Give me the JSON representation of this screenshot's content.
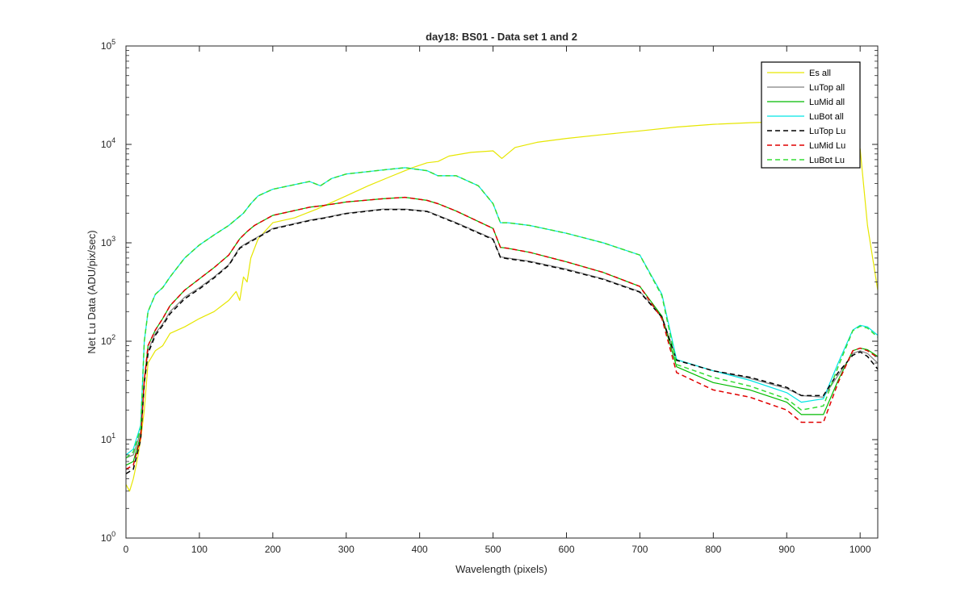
{
  "chart_data": {
    "type": "line",
    "title": "day18: BS01 - Data set 1 and 2",
    "xlabel": "Wavelength (pixels)",
    "ylabel": "Net Lu Data (ADU/pix/sec)",
    "xlim": [
      0,
      1024
    ],
    "ylim": [
      1,
      100000
    ],
    "yscale": "log",
    "grid": false,
    "legend_position": "top-right",
    "x_ticks": [
      0,
      100,
      200,
      300,
      400,
      500,
      600,
      700,
      800,
      900,
      1000
    ],
    "y_ticks": [
      1,
      10,
      100,
      1000,
      10000,
      100000
    ],
    "y_tick_labels": [
      {
        "base": "10",
        "exp": "0"
      },
      {
        "base": "10",
        "exp": "1"
      },
      {
        "base": "10",
        "exp": "2"
      },
      {
        "base": "10",
        "exp": "3"
      },
      {
        "base": "10",
        "exp": "4"
      },
      {
        "base": "10",
        "exp": "5"
      }
    ],
    "series": [
      {
        "name": "Es  all",
        "color": "#e6e600",
        "style": "solid",
        "x": [
          0,
          5,
          10,
          15,
          20,
          25,
          30,
          40,
          50,
          60,
          80,
          100,
          120,
          140,
          150,
          155,
          160,
          165,
          170,
          180,
          200,
          230,
          260,
          300,
          330,
          360,
          390,
          410,
          425,
          440,
          470,
          500,
          512,
          530,
          560,
          600,
          650,
          700,
          750,
          800,
          850,
          900,
          940,
          980,
          1000,
          1010,
          1024
        ],
        "y": [
          3.5,
          3.0,
          4.0,
          6.0,
          10,
          20,
          60,
          80,
          90,
          120,
          140,
          170,
          200,
          260,
          320,
          260,
          450,
          400,
          700,
          1100,
          1600,
          1800,
          2200,
          3000,
          3800,
          4700,
          5800,
          6500,
          6700,
          7600,
          8300,
          8600,
          7200,
          9300,
          10500,
          11500,
          12600,
          13700,
          15000,
          16000,
          16600,
          17000,
          17500,
          16000,
          9000,
          1500,
          330
        ]
      },
      {
        "name": "LuTop  all",
        "color": "#808080",
        "style": "solid",
        "x": [
          0,
          10,
          20,
          25,
          30,
          40,
          50,
          60,
          80,
          100,
          120,
          140,
          155,
          165,
          175,
          200,
          250,
          270,
          300,
          350,
          380,
          410,
          425,
          450,
          500,
          510,
          520,
          550,
          600,
          650,
          700,
          730,
          750,
          800,
          850,
          900,
          920,
          950,
          970,
          990,
          1000,
          1010,
          1024
        ],
        "y": [
          6.5,
          7.0,
          12,
          40,
          80,
          120,
          150,
          200,
          280,
          350,
          450,
          600,
          900,
          1000,
          1100,
          1400,
          1700,
          1800,
          2000,
          2200,
          2200,
          2100,
          1900,
          1600,
          1100,
          720,
          700,
          650,
          540,
          430,
          320,
          180,
          65,
          50,
          42,
          33,
          28,
          27,
          45,
          75,
          80,
          75,
          60
        ]
      },
      {
        "name": "LuMid  all",
        "color": "#00bb00",
        "style": "solid",
        "x": [
          0,
          10,
          20,
          25,
          30,
          40,
          50,
          60,
          80,
          100,
          120,
          140,
          155,
          165,
          175,
          200,
          250,
          270,
          300,
          350,
          380,
          410,
          425,
          450,
          500,
          510,
          520,
          550,
          600,
          650,
          700,
          730,
          750,
          800,
          850,
          900,
          920,
          950,
          970,
          990,
          1000,
          1010,
          1024
        ],
        "y": [
          5.5,
          6.0,
          11,
          40,
          90,
          130,
          170,
          230,
          330,
          430,
          560,
          750,
          1100,
          1300,
          1500,
          1900,
          2300,
          2400,
          2600,
          2800,
          2900,
          2700,
          2500,
          2100,
          1400,
          900,
          880,
          800,
          640,
          500,
          360,
          180,
          55,
          38,
          32,
          24,
          18,
          18,
          40,
          80,
          85,
          82,
          70
        ]
      },
      {
        "name": "LuBot  all",
        "color": "#00e5e5",
        "style": "solid",
        "x": [
          0,
          10,
          20,
          25,
          30,
          40,
          50,
          60,
          80,
          100,
          120,
          140,
          160,
          170,
          180,
          200,
          250,
          265,
          280,
          300,
          350,
          380,
          410,
          425,
          450,
          480,
          500,
          510,
          520,
          550,
          600,
          650,
          700,
          730,
          750,
          800,
          850,
          900,
          920,
          950,
          970,
          990,
          1000,
          1010,
          1024
        ],
        "y": [
          7.0,
          8.0,
          14,
          100,
          200,
          300,
          350,
          450,
          700,
          950,
          1200,
          1500,
          2000,
          2500,
          3000,
          3500,
          4200,
          3800,
          4500,
          5000,
          5500,
          5800,
          5400,
          4800,
          4800,
          3800,
          2500,
          1600,
          1600,
          1500,
          1250,
          1000,
          750,
          300,
          65,
          50,
          40,
          30,
          24,
          26,
          60,
          130,
          145,
          140,
          115
        ]
      },
      {
        "name": "LuTop  Lu",
        "color": "#000000",
        "style": "dashed",
        "x": [
          0,
          10,
          20,
          25,
          30,
          40,
          50,
          60,
          80,
          100,
          120,
          140,
          155,
          165,
          175,
          200,
          250,
          270,
          300,
          350,
          380,
          410,
          425,
          450,
          500,
          510,
          520,
          550,
          600,
          650,
          700,
          730,
          750,
          800,
          850,
          900,
          920,
          950,
          970,
          990,
          1000,
          1010,
          1024
        ],
        "y": [
          4.5,
          5.0,
          10,
          38,
          75,
          115,
          145,
          190,
          270,
          340,
          440,
          590,
          880,
          980,
          1080,
          1380,
          1680,
          1780,
          1980,
          2180,
          2180,
          2080,
          1880,
          1580,
          1080,
          710,
          690,
          640,
          530,
          425,
          315,
          175,
          64,
          50,
          43,
          34,
          28,
          28,
          48,
          72,
          78,
          70,
          52
        ]
      },
      {
        "name": "LuMid  Lu",
        "color": "#e00000",
        "style": "dashed",
        "x": [
          0,
          10,
          20,
          25,
          30,
          40,
          50,
          60,
          80,
          100,
          120,
          140,
          155,
          165,
          175,
          200,
          250,
          270,
          300,
          350,
          380,
          410,
          425,
          450,
          500,
          510,
          520,
          550,
          600,
          650,
          700,
          730,
          750,
          800,
          850,
          900,
          920,
          950,
          970,
          990,
          1000,
          1010,
          1024
        ],
        "y": [
          5.0,
          5.5,
          10.5,
          40,
          90,
          130,
          170,
          230,
          330,
          430,
          560,
          750,
          1100,
          1300,
          1500,
          1900,
          2300,
          2400,
          2600,
          2800,
          2900,
          2700,
          2500,
          2100,
          1400,
          900,
          880,
          800,
          640,
          500,
          360,
          170,
          48,
          32,
          27,
          20,
          15,
          15,
          38,
          80,
          85,
          80,
          68
        ]
      },
      {
        "name": "LuBot  Lu",
        "color": "#33dd33",
        "style": "dashed",
        "x": [
          0,
          10,
          20,
          25,
          30,
          40,
          50,
          60,
          80,
          100,
          120,
          140,
          160,
          170,
          180,
          200,
          250,
          265,
          280,
          300,
          350,
          380,
          410,
          425,
          450,
          480,
          500,
          510,
          520,
          550,
          600,
          650,
          700,
          730,
          750,
          800,
          850,
          900,
          920,
          950,
          970,
          990,
          1000,
          1010,
          1024
        ],
        "y": [
          6.5,
          7.5,
          13,
          100,
          200,
          300,
          350,
          450,
          700,
          950,
          1200,
          1500,
          2000,
          2500,
          3000,
          3500,
          4200,
          3800,
          4500,
          5000,
          5500,
          5800,
          5400,
          4800,
          4800,
          3800,
          2500,
          1600,
          1600,
          1500,
          1250,
          1000,
          750,
          290,
          58,
          43,
          35,
          26,
          20,
          22,
          55,
          128,
          142,
          136,
          110
        ]
      }
    ]
  }
}
